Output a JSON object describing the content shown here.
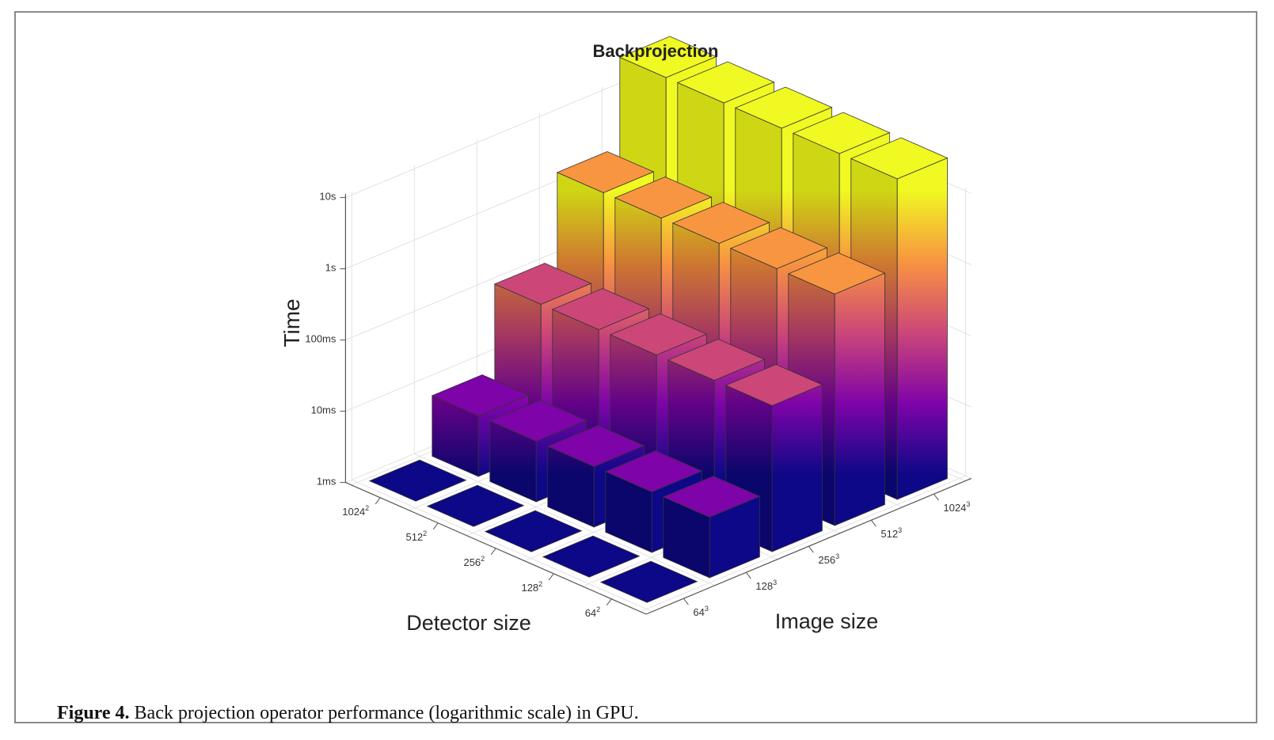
{
  "caption": {
    "label": "Figure 4.",
    "text": "Back projection operator performance (logarithmic scale) in GPU."
  },
  "chart_data": {
    "type": "bar3d",
    "title": "Backprojection",
    "zlabel": "Time",
    "xlabel": "Detector size",
    "ylabel": "Image size",
    "z_scale": "log",
    "z_ticks": [
      "1ms",
      "10ms",
      "100ms",
      "1s",
      "10s"
    ],
    "detector_sizes": [
      {
        "base": "1024",
        "exp": "2"
      },
      {
        "base": "512",
        "exp": "2"
      },
      {
        "base": "256",
        "exp": "2"
      },
      {
        "base": "128",
        "exp": "2"
      },
      {
        "base": "64",
        "exp": "2"
      }
    ],
    "image_sizes": [
      {
        "base": "64",
        "exp": "3"
      },
      {
        "base": "128",
        "exp": "3"
      },
      {
        "base": "256",
        "exp": "3"
      },
      {
        "base": "512",
        "exp": "3"
      },
      {
        "base": "1024",
        "exp": "3"
      }
    ],
    "note": "values are log10(time in ms); rows follow image_sizes order, columns follow detector_sizes order",
    "values_log10_ms": [
      [
        0.02,
        0.02,
        0.02,
        0.02,
        0.02
      ],
      [
        0.85,
        0.85,
        0.85,
        0.85,
        0.85
      ],
      [
        2.05,
        2.05,
        2.05,
        2.05,
        2.05
      ],
      [
        3.25,
        3.25,
        3.25,
        3.25,
        3.25
      ],
      [
        4.5,
        4.5,
        4.5,
        4.5,
        4.5
      ]
    ],
    "colormap": [
      "#0d0887",
      "#7e03a8",
      "#cc4778",
      "#f89540",
      "#f0f921"
    ]
  }
}
